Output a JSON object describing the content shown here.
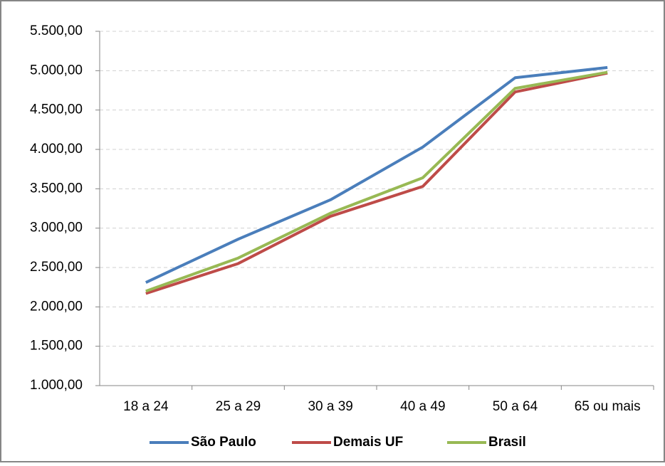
{
  "chart_data": {
    "type": "line",
    "categories": [
      "18 a 24",
      "25 a 29",
      "30 a 39",
      "40 a 49",
      "50 a 64",
      "65 ou mais"
    ],
    "series": [
      {
        "name": "São Paulo",
        "color": "#4a7ebb",
        "values": [
          2310,
          2860,
          3360,
          4030,
          4910,
          5040
        ]
      },
      {
        "name": "Demais UF",
        "color": "#be4b48",
        "values": [
          2170,
          2550,
          3150,
          3530,
          4730,
          4970
        ]
      },
      {
        "name": "Brasil",
        "color": "#98b954",
        "values": [
          2200,
          2620,
          3190,
          3640,
          4775,
          4980
        ]
      }
    ],
    "ylim": [
      1000,
      5500
    ],
    "yticks": [
      {
        "value": 1000,
        "label": "1.000,00"
      },
      {
        "value": 1500,
        "label": "1.500,00"
      },
      {
        "value": 2000,
        "label": "2.000,00"
      },
      {
        "value": 2500,
        "label": "2.500,00"
      },
      {
        "value": 3000,
        "label": "3.000,00"
      },
      {
        "value": 3500,
        "label": "3.500,00"
      },
      {
        "value": 4000,
        "label": "4.000,00"
      },
      {
        "value": 4500,
        "label": "4.500,00"
      },
      {
        "value": 5000,
        "label": "5.000,00"
      },
      {
        "value": 5500,
        "label": "5.500,00"
      }
    ],
    "grid": true,
    "legend": "bottom"
  }
}
